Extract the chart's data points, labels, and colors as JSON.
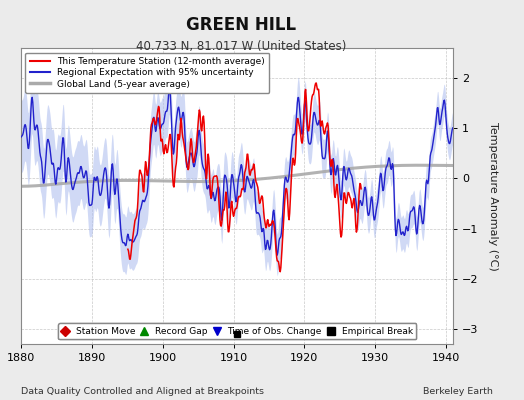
{
  "title": "GREEN HILL",
  "subtitle": "40.733 N, 81.017 W (United States)",
  "xlabel_left": "Data Quality Controlled and Aligned at Breakpoints",
  "xlabel_right": "Berkeley Earth",
  "ylabel": "Temperature Anomaly (°C)",
  "xlim": [
    1880,
    1941
  ],
  "ylim": [
    -3.3,
    2.6
  ],
  "yticks": [
    -3,
    -2,
    -1,
    0,
    1,
    2
  ],
  "xticks": [
    1880,
    1890,
    1900,
    1910,
    1920,
    1930,
    1940
  ],
  "station_color": "#EE0000",
  "regional_color": "#2222CC",
  "regional_fill_color": "#AABBEE",
  "global_color": "#AAAAAA",
  "background_color": "#EBEBEB",
  "plot_bg_color": "#FFFFFF",
  "legend_items": [
    {
      "label": "This Temperature Station (12-month average)",
      "color": "#EE0000",
      "lw": 1.5
    },
    {
      "label": "Regional Expectation with 95% uncertainty",
      "color": "#2222CC",
      "lw": 1.5
    },
    {
      "label": "Global Land (5-year average)",
      "color": "#AAAAAA",
      "lw": 2.5
    }
  ],
  "marker_legend": [
    {
      "label": "Station Move",
      "marker": "D",
      "color": "#CC0000"
    },
    {
      "label": "Record Gap",
      "marker": "^",
      "color": "#008800"
    },
    {
      "label": "Time of Obs. Change",
      "marker": "v",
      "color": "#0000CC"
    },
    {
      "label": "Empirical Break",
      "marker": "s",
      "color": "#000000"
    }
  ],
  "empirical_break_x": 1910.5,
  "empirical_break_y": -3.1,
  "seed": 137
}
